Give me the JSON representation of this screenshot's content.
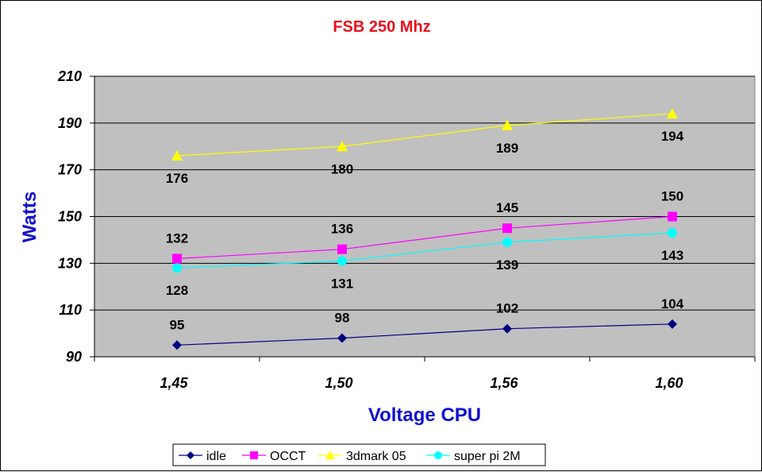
{
  "chart_data": {
    "type": "line",
    "title": "FSB 250 Mhz",
    "xlabel": "Voltage CPU",
    "ylabel": "Watts",
    "categories": [
      "1,45",
      "1,50",
      "1,56",
      "1,60"
    ],
    "ylim": [
      90,
      210
    ],
    "yticks": [
      90,
      110,
      130,
      150,
      170,
      190,
      210
    ],
    "grid": true,
    "legend_position": "bottom",
    "plot_background": "#c0c0c0",
    "title_color": "#e8101c",
    "axis_title_color": "#1010d0",
    "series": [
      {
        "name": "idle",
        "values": [
          95,
          98,
          102,
          104
        ],
        "color": "#000080",
        "marker": "diamond",
        "label_pos": "above"
      },
      {
        "name": "OCCT",
        "values": [
          132,
          136,
          145,
          150
        ],
        "color": "#ff00ff",
        "marker": "square",
        "label_pos": "above"
      },
      {
        "name": "3dmark 05",
        "values": [
          176,
          180,
          189,
          194
        ],
        "color": "#ffff00",
        "marker": "triangle",
        "label_pos": "below"
      },
      {
        "name": "super pi 2M",
        "values": [
          128,
          131,
          139,
          143
        ],
        "color": "#00ffff",
        "marker": "circle",
        "label_pos": "below"
      }
    ]
  }
}
